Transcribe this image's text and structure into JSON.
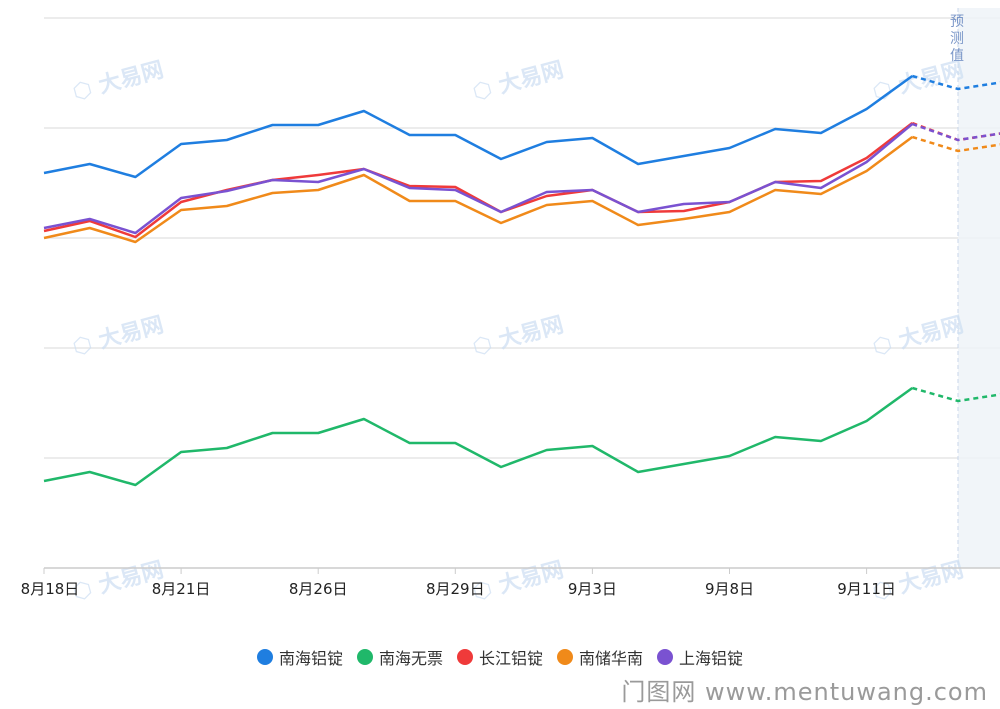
{
  "chart_data": {
    "type": "line",
    "x": [
      "8月18日",
      "8月19日",
      "8月20日",
      "8月21日",
      "8月22日",
      "8月25日",
      "8月26日",
      "8月27日",
      "8月28日",
      "8月29日",
      "9月1日",
      "9月2日",
      "9月3日",
      "9月4日",
      "9月5日",
      "9月8日",
      "9月9日",
      "9月10日",
      "9月11日",
      "9月12日",
      "9月15日",
      "9月16日"
    ],
    "tick_labels": [
      "8月18日",
      "8月21日",
      "8月26日",
      "8月29日",
      "9月3日",
      "9月8日",
      "9月11日"
    ],
    "tick_indices": [
      0,
      3,
      6,
      9,
      12,
      15,
      18
    ],
    "forecast_start_index": 20,
    "forecast_label": "预测值",
    "series": [
      {
        "name": "南海铝锭",
        "color": "#1f7ee0",
        "values": [
          173,
          164,
          177,
          144,
          140,
          125,
          125,
          111,
          135,
          135,
          159,
          142,
          138,
          164,
          156,
          148,
          129,
          133,
          109,
          76,
          89,
          82
        ]
      },
      {
        "name": "南海无票",
        "color": "#20b86a",
        "values": [
          481,
          472,
          485,
          452,
          448,
          433,
          433,
          419,
          443,
          443,
          467,
          450,
          446,
          472,
          464,
          456,
          437,
          441,
          421,
          388,
          401,
          394
        ]
      },
      {
        "name": "长江铝锭",
        "color": "#ef3a3a",
        "values": [
          231,
          221,
          237,
          202,
          190,
          180,
          175,
          169,
          186,
          187,
          212,
          196,
          190,
          212,
          211,
          202,
          182,
          181,
          158,
          123,
          140,
          133
        ]
      },
      {
        "name": "南储华南",
        "color": "#f08a1a",
        "values": [
          238,
          228,
          242,
          210,
          206,
          193,
          190,
          175,
          201,
          201,
          223,
          205,
          201,
          225,
          219,
          212,
          190,
          194,
          171,
          137,
          151,
          144
        ]
      },
      {
        "name": "上海铝锭",
        "color": "#7a52d1",
        "values": [
          228,
          219,
          233,
          198,
          191,
          180,
          182,
          169,
          188,
          190,
          212,
          192,
          190,
          212,
          204,
          202,
          182,
          188,
          162,
          124,
          140,
          133
        ]
      }
    ]
  },
  "watermark": {
    "text": "门图网 www.mentuwang.com",
    "logo_text": "大易网"
  }
}
